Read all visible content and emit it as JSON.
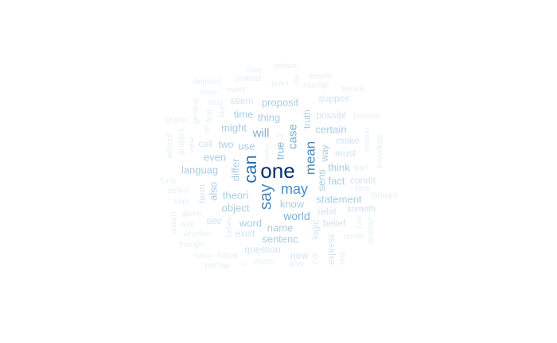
{
  "palette": [
    "#e6f0f8",
    "#d3e4f3",
    "#a9cde4",
    "#7fb1d8",
    "#4a8bc2",
    "#2a6fb0",
    "#08306b"
  ],
  "words": [
    {
      "text": "one",
      "weight": 7
    },
    {
      "text": "can",
      "weight": 6
    },
    {
      "text": "say",
      "weight": 5
    },
    {
      "text": "may",
      "weight": 5
    },
    {
      "text": "mean",
      "weight": 5
    },
    {
      "text": "case",
      "weight": 4
    },
    {
      "text": "true",
      "weight": 4
    },
    {
      "text": "will",
      "weight": 4
    },
    {
      "text": "world",
      "weight": 4
    },
    {
      "text": "know",
      "weight": 3
    },
    {
      "text": "fact",
      "weight": 3
    },
    {
      "text": "sens",
      "weight": 3
    },
    {
      "text": "way",
      "weight": 3
    },
    {
      "text": "think",
      "weight": 3
    },
    {
      "text": "statement",
      "weight": 3
    },
    {
      "text": "name",
      "weight": 3
    },
    {
      "text": "word",
      "weight": 3
    },
    {
      "text": "sentenc",
      "weight": 3
    },
    {
      "text": "theori",
      "weight": 3
    },
    {
      "text": "object",
      "weight": 3
    },
    {
      "text": "use",
      "weight": 3
    },
    {
      "text": "thing",
      "weight": 3
    },
    {
      "text": "time",
      "weight": 3
    },
    {
      "text": "might",
      "weight": 3
    },
    {
      "text": "two",
      "weight": 3
    },
    {
      "text": "even",
      "weight": 3
    },
    {
      "text": "languag",
      "weight": 3
    },
    {
      "text": "differ",
      "weight": 3
    },
    {
      "text": "also",
      "weight": 3
    },
    {
      "text": "proposit",
      "weight": 3
    },
    {
      "text": "certain",
      "weight": 3
    },
    {
      "text": "truth",
      "weight": 3
    },
    {
      "text": "possibl",
      "weight": 2
    },
    {
      "text": "suppos",
      "weight": 2
    },
    {
      "text": "seem",
      "weight": 2
    },
    {
      "text": "make",
      "weight": 2
    },
    {
      "text": "must",
      "weight": 2
    },
    {
      "text": "condit",
      "weight": 2
    },
    {
      "text": "relat",
      "weight": 2
    },
    {
      "text": "belief",
      "weight": 2
    },
    {
      "text": "exist",
      "weight": 2
    },
    {
      "text": "question",
      "weight": 2
    },
    {
      "text": "see",
      "weight": 2
    },
    {
      "text": "call",
      "weight": 2
    },
    {
      "text": "term",
      "weight": 2
    },
    {
      "text": "logic",
      "weight": 2
    },
    {
      "text": "express",
      "weight": 2
    },
    {
      "text": "now",
      "weight": 2
    },
    {
      "text": "someth",
      "weight": 2
    },
    {
      "text": "believ",
      "weight": 1
    },
    {
      "text": "refer",
      "weight": 1
    },
    {
      "text": "point",
      "weight": 1
    },
    {
      "text": "exampl",
      "weight": 1
    },
    {
      "text": "person",
      "weight": 1
    },
    {
      "text": "take",
      "weight": 1
    },
    {
      "text": "event",
      "weight": 1
    },
    {
      "text": "probabl",
      "weight": 1
    },
    {
      "text": "depend",
      "weight": 1
    },
    {
      "text": "state",
      "weight": 1
    },
    {
      "text": "thus",
      "weight": 1
    },
    {
      "text": "general",
      "weight": 1
    },
    {
      "text": "physic",
      "weight": 1
    },
    {
      "text": "properti",
      "weight": 1
    },
    {
      "text": "without",
      "weight": 1
    },
    {
      "text": "view",
      "weight": 1
    },
    {
      "text": "first",
      "weight": 1
    },
    {
      "text": "like",
      "weight": 1
    },
    {
      "text": "let",
      "weight": 1
    },
    {
      "text": "form",
      "weight": 1
    },
    {
      "text": "definit",
      "weight": 1
    },
    {
      "text": "kind",
      "weight": 1
    },
    {
      "text": "given",
      "weight": 1
    },
    {
      "text": "assert",
      "weight": 1
    },
    {
      "text": "well",
      "weight": 1
    },
    {
      "text": "whether",
      "weight": 1
    },
    {
      "text": "though",
      "weight": 1
    },
    {
      "text": "natur",
      "weight": 1
    },
    {
      "text": "follow",
      "weight": 1
    },
    {
      "text": "perhap",
      "weight": 1
    },
    {
      "text": "expen",
      "weight": 1
    },
    {
      "text": "give",
      "weight": 1
    },
    {
      "text": "law",
      "weight": 1
    },
    {
      "text": "observ",
      "weight": 1
    },
    {
      "text": "similar",
      "weight": 1
    },
    {
      "text": "present",
      "weight": 1
    },
    {
      "text": "reason",
      "weight": 1
    },
    {
      "text": "knowledg",
      "weight": 1
    },
    {
      "text": "part",
      "weight": 1
    },
    {
      "text": "idea",
      "weight": 1
    },
    {
      "text": "thought",
      "weight": 1
    },
    {
      "text": "anoth",
      "weight": 1
    },
    {
      "text": "descript",
      "weight": 1
    },
    {
      "text": "just",
      "weight": 1
    },
    {
      "text": "real",
      "weight": 1
    },
    {
      "text": "rule",
      "weight": 1
    },
    {
      "text": "re",
      "weight": 1
    },
    {
      "text": "p",
      "weight": 1
    }
  ]
}
